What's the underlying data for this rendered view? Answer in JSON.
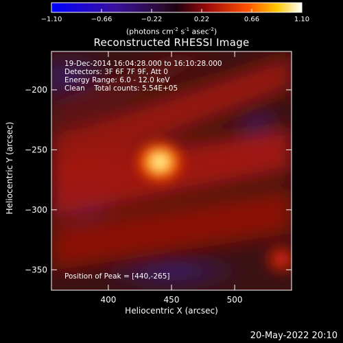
{
  "colorbar": {
    "ticks": [
      "-1.10",
      "-0.66",
      "-0.22",
      "0.22",
      "0.66",
      "1.10"
    ],
    "units": "(photons cm",
    "units_exp1": "-2",
    "units_mid": " s",
    "units_exp2": "-1",
    "units_mid2": " asec",
    "units_exp3": "-2",
    "units_end": ")"
  },
  "title": "Reconstructed RHESSI Image",
  "info": {
    "line1": "19-Dec-2014 16:04:28.000 to 16:10:28.000",
    "line2": "Detectors: 3F 6F 7F 9F, Att 0",
    "line3": "Energy Range: 6.0 - 12.0 keV",
    "line4": "Clean    Total counts: 5.54E+05"
  },
  "peak_text": "Position of Peak = [440,-265]",
  "footer": "20-May-2022 20:10",
  "chart_data": {
    "type": "heatmap",
    "title": "Reconstructed RHESSI Image",
    "xlabel": "Heliocentric X (arcsec)",
    "ylabel": "Heliocentric Y (arcsec)",
    "xlim": [
      355,
      545
    ],
    "ylim": [
      -367,
      -168
    ],
    "x_ticks": [
      400,
      450,
      500
    ],
    "y_ticks": [
      -200,
      -250,
      -300,
      -350
    ],
    "color_range": [
      -1.1,
      1.1
    ],
    "colormap": "blue-purple-red-yellow-white",
    "peak": [
      440,
      -265
    ]
  }
}
